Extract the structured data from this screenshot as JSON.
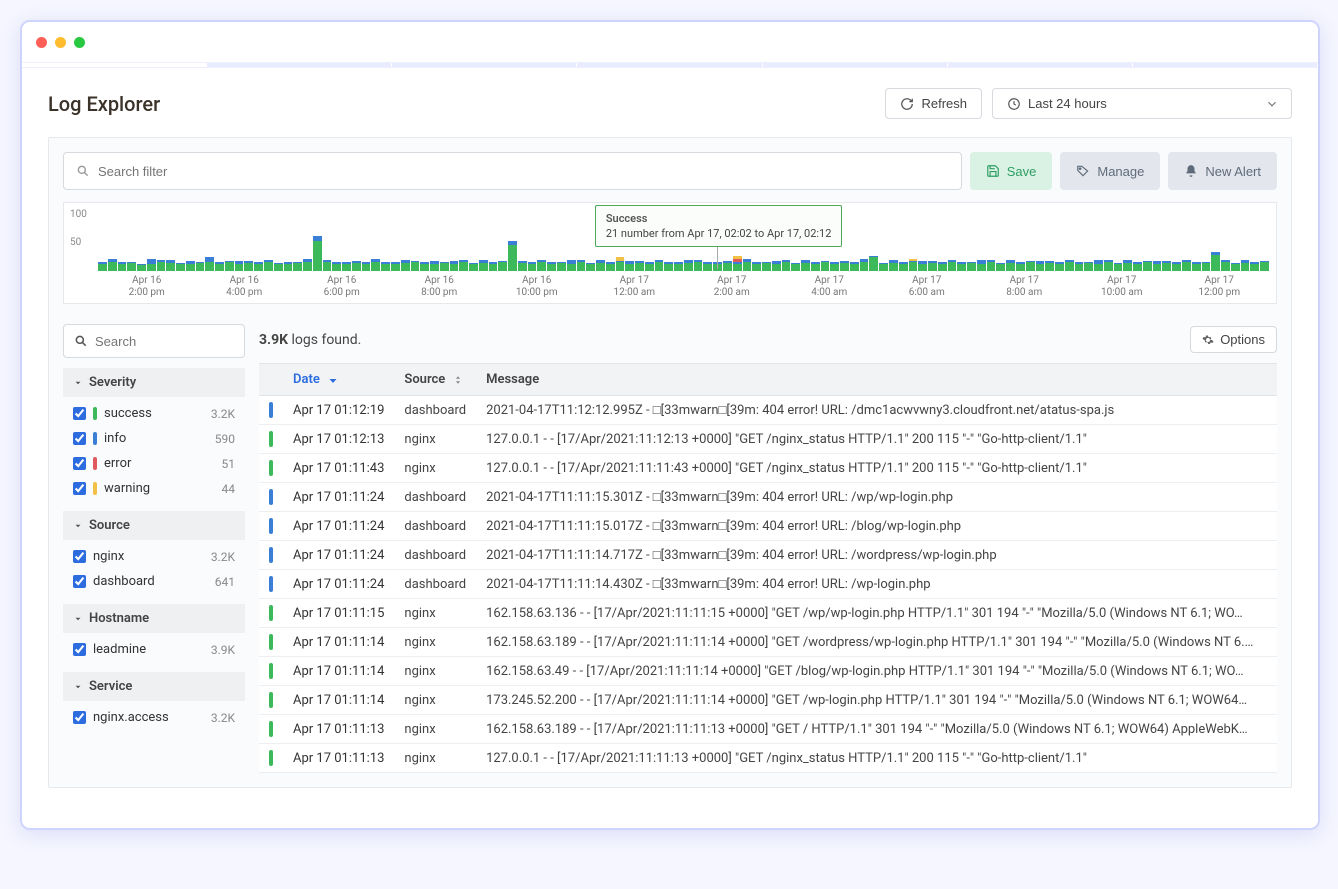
{
  "mac_dots": [
    "#ff5f57",
    "#febc2e",
    "#28c840"
  ],
  "colors": {
    "success": "#3cb95b",
    "info": "#3a7fd5",
    "error": "#e0595b",
    "warning": "#f2c044",
    "accent": "#2d6cdf",
    "save_bg": "#d9f2e3",
    "save_fg": "#2e9e63",
    "muted_bg": "#e3e7ed",
    "muted_fg": "#5f6b7a"
  },
  "header": {
    "title": "Log Explorer",
    "refresh_label": "Refresh",
    "timerange_label": "Last 24 hours"
  },
  "filter_bar": {
    "search_placeholder": "Search filter",
    "save_label": "Save",
    "manage_label": "Manage",
    "alert_label": "New Alert"
  },
  "chart": {
    "ymax": 100,
    "yticks": [
      100,
      50
    ],
    "tooltip": {
      "title": "Success",
      "text": "21 number from Apr 17, 02:02 to Apr 17, 02:12",
      "left_pct": 43.8
    },
    "hover_line": {
      "left_pct": 53.9
    },
    "xticks": [
      {
        "l1": "Apr 16",
        "l2": "2:00 pm"
      },
      {
        "l1": "Apr 16",
        "l2": "4:00 pm"
      },
      {
        "l1": "Apr 16",
        "l2": "6:00 pm"
      },
      {
        "l1": "Apr 16",
        "l2": "8:00 pm"
      },
      {
        "l1": "Apr 16",
        "l2": "10:00 pm"
      },
      {
        "l1": "Apr 17",
        "l2": "12:00 am"
      },
      {
        "l1": "Apr 17",
        "l2": "2:00 am"
      },
      {
        "l1": "Apr 17",
        "l2": "4:00 am"
      },
      {
        "l1": "Apr 17",
        "l2": "6:00 am"
      },
      {
        "l1": "Apr 17",
        "l2": "8:00 am"
      },
      {
        "l1": "Apr 17",
        "l2": "10:00 am"
      },
      {
        "l1": "Apr 17",
        "l2": "12:00 pm"
      }
    ],
    "bars": [
      {
        "s": 12,
        "i": 2
      },
      {
        "s": 14,
        "i": 6
      },
      {
        "s": 11,
        "i": 3
      },
      {
        "s": 13,
        "i": 2
      },
      {
        "s": 10,
        "i": 1
      },
      {
        "s": 12,
        "i": 8
      },
      {
        "s": 14,
        "i": 3
      },
      {
        "s": 13,
        "i": 5
      },
      {
        "s": 11,
        "i": 2
      },
      {
        "s": 12,
        "i": 4
      },
      {
        "s": 13,
        "i": 2
      },
      {
        "s": 15,
        "i": 7
      },
      {
        "s": 12,
        "i": 3
      },
      {
        "s": 14,
        "i": 2
      },
      {
        "s": 11,
        "i": 5
      },
      {
        "s": 13,
        "i": 3
      },
      {
        "s": 12,
        "i": 2
      },
      {
        "s": 14,
        "i": 4
      },
      {
        "s": 11,
        "i": 2
      },
      {
        "s": 12,
        "i": 3
      },
      {
        "s": 13,
        "i": 2
      },
      {
        "s": 14,
        "i": 5
      },
      {
        "s": 48,
        "i": 8
      },
      {
        "s": 15,
        "i": 3
      },
      {
        "s": 12,
        "i": 2
      },
      {
        "s": 11,
        "i": 4
      },
      {
        "s": 13,
        "i": 3
      },
      {
        "s": 12,
        "i": 2
      },
      {
        "s": 14,
        "i": 5
      },
      {
        "s": 11,
        "i": 3
      },
      {
        "s": 12,
        "i": 2
      },
      {
        "s": 13,
        "i": 4
      },
      {
        "s": 14,
        "i": 2
      },
      {
        "s": 12,
        "i": 3
      },
      {
        "s": 11,
        "i": 5
      },
      {
        "s": 13,
        "i": 2
      },
      {
        "s": 12,
        "i": 4
      },
      {
        "s": 14,
        "i": 3
      },
      {
        "s": 11,
        "i": 2
      },
      {
        "s": 13,
        "i": 5
      },
      {
        "s": 12,
        "i": 3
      },
      {
        "s": 14,
        "i": 2
      },
      {
        "s": 42,
        "i": 6
      },
      {
        "s": 13,
        "i": 3
      },
      {
        "s": 12,
        "i": 2
      },
      {
        "s": 14,
        "i": 4
      },
      {
        "s": 11,
        "i": 3
      },
      {
        "s": 13,
        "i": 2
      },
      {
        "s": 12,
        "i": 5
      },
      {
        "s": 14,
        "i": 3
      },
      {
        "s": 11,
        "i": 2
      },
      {
        "s": 13,
        "i": 4
      },
      {
        "s": 12,
        "i": 3
      },
      {
        "s": 14,
        "i": 2,
        "w": 6
      },
      {
        "s": 11,
        "i": 5
      },
      {
        "s": 13,
        "i": 3
      },
      {
        "s": 12,
        "i": 2
      },
      {
        "s": 14,
        "i": 4
      },
      {
        "s": 11,
        "i": 3
      },
      {
        "s": 12,
        "i": 2
      },
      {
        "s": 13,
        "i": 5
      },
      {
        "s": 14,
        "i": 3
      },
      {
        "s": 12,
        "i": 2
      },
      {
        "s": 11,
        "i": 4
      },
      {
        "s": 13,
        "i": 3
      },
      {
        "s": 12,
        "i": 2,
        "e": 6,
        "w": 4
      },
      {
        "s": 14,
        "i": 5
      },
      {
        "s": 11,
        "i": 3
      },
      {
        "s": 13,
        "i": 2
      },
      {
        "s": 12,
        "i": 4
      },
      {
        "s": 14,
        "i": 3
      },
      {
        "s": 11,
        "i": 2
      },
      {
        "s": 13,
        "i": 5
      },
      {
        "s": 12,
        "i": 3
      },
      {
        "s": 14,
        "i": 2
      },
      {
        "s": 11,
        "i": 4
      },
      {
        "s": 13,
        "i": 3
      },
      {
        "s": 12,
        "i": 2
      },
      {
        "s": 14,
        "i": 5
      },
      {
        "s": 22,
        "i": 3
      },
      {
        "s": 11,
        "i": 2
      },
      {
        "s": 13,
        "i": 4
      },
      {
        "s": 12,
        "i": 3
      },
      {
        "s": 14,
        "i": 2,
        "w": 3
      },
      {
        "s": 11,
        "i": 5
      },
      {
        "s": 13,
        "i": 3
      },
      {
        "s": 12,
        "i": 2
      },
      {
        "s": 14,
        "i": 4
      },
      {
        "s": 11,
        "i": 3
      },
      {
        "s": 13,
        "i": 2
      },
      {
        "s": 12,
        "i": 5
      },
      {
        "s": 14,
        "i": 3
      },
      {
        "s": 11,
        "i": 2
      },
      {
        "s": 13,
        "i": 4
      },
      {
        "s": 12,
        "i": 3
      },
      {
        "s": 14,
        "i": 2
      },
      {
        "s": 11,
        "i": 5
      },
      {
        "s": 13,
        "i": 3
      },
      {
        "s": 12,
        "i": 2
      },
      {
        "s": 14,
        "i": 4
      },
      {
        "s": 11,
        "i": 3
      },
      {
        "s": 13,
        "i": 2
      },
      {
        "s": 12,
        "i": 5
      },
      {
        "s": 14,
        "i": 3
      },
      {
        "s": 11,
        "i": 2
      },
      {
        "s": 13,
        "i": 4
      },
      {
        "s": 12,
        "i": 3
      },
      {
        "s": 14,
        "i": 2
      },
      {
        "s": 11,
        "i": 5
      },
      {
        "s": 13,
        "i": 3
      },
      {
        "s": 12,
        "i": 2
      },
      {
        "s": 14,
        "i": 4
      },
      {
        "s": 11,
        "i": 3
      },
      {
        "s": 13,
        "i": 2
      },
      {
        "s": 26,
        "i": 5
      },
      {
        "s": 14,
        "i": 3
      },
      {
        "s": 11,
        "i": 2
      },
      {
        "s": 13,
        "i": 4
      },
      {
        "s": 12,
        "i": 3
      },
      {
        "s": 14,
        "i": 2
      }
    ]
  },
  "side_search_placeholder": "Search",
  "facets": [
    {
      "title": "Severity",
      "items": [
        {
          "label": "success",
          "count": "3.2K",
          "color": "#3cb95b",
          "checked": true
        },
        {
          "label": "info",
          "count": "590",
          "color": "#3a7fd5",
          "checked": true
        },
        {
          "label": "error",
          "count": "51",
          "color": "#e0595b",
          "checked": true
        },
        {
          "label": "warning",
          "count": "44",
          "color": "#f2c044",
          "checked": true
        }
      ]
    },
    {
      "title": "Source",
      "items": [
        {
          "label": "nginx",
          "count": "3.2K",
          "checked": true
        },
        {
          "label": "dashboard",
          "count": "641",
          "checked": true
        }
      ]
    },
    {
      "title": "Hostname",
      "items": [
        {
          "label": "leadmine",
          "count": "3.9K",
          "checked": true
        }
      ]
    },
    {
      "title": "Service",
      "items": [
        {
          "label": "nginx.access",
          "count": "3.2K",
          "checked": true
        }
      ]
    }
  ],
  "logs_found": {
    "count": "3.9K",
    "suffix": " logs found."
  },
  "options_label": "Options",
  "table": {
    "columns": {
      "date": "Date",
      "source": "Source",
      "message": "Message"
    },
    "rows": [
      {
        "sev": "info",
        "date": "Apr 17 01:12:19",
        "source": "dashboard",
        "msg": "2021-04-17T11:12:12.995Z - □[33mwarn□[39m: 404 error! URL: /dmc1acwvwny3.cloudfront.net/atatus-spa.js"
      },
      {
        "sev": "success",
        "date": "Apr 17 01:12:13",
        "source": "nginx",
        "msg": "127.0.0.1 - - [17/Apr/2021:11:12:13 +0000] \"GET /nginx_status HTTP/1.1\" 200 115 \"-\" \"Go-http-client/1.1\""
      },
      {
        "sev": "success",
        "date": "Apr 17 01:11:43",
        "source": "nginx",
        "msg": "127.0.0.1 - - [17/Apr/2021:11:11:43 +0000] \"GET /nginx_status HTTP/1.1\" 200 115 \"-\" \"Go-http-client/1.1\""
      },
      {
        "sev": "info",
        "date": "Apr 17 01:11:24",
        "source": "dashboard",
        "msg": "2021-04-17T11:11:15.301Z - □[33mwarn□[39m: 404 error! URL: /wp/wp-login.php"
      },
      {
        "sev": "info",
        "date": "Apr 17 01:11:24",
        "source": "dashboard",
        "msg": "2021-04-17T11:11:15.017Z - □[33mwarn□[39m: 404 error! URL: /blog/wp-login.php"
      },
      {
        "sev": "info",
        "date": "Apr 17 01:11:24",
        "source": "dashboard",
        "msg": "2021-04-17T11:11:14.717Z - □[33mwarn□[39m: 404 error! URL: /wordpress/wp-login.php"
      },
      {
        "sev": "info",
        "date": "Apr 17 01:11:24",
        "source": "dashboard",
        "msg": "2021-04-17T11:11:14.430Z - □[33mwarn□[39m: 404 error! URL: /wp-login.php"
      },
      {
        "sev": "success",
        "date": "Apr 17 01:11:15",
        "source": "nginx",
        "msg": "162.158.63.136 - - [17/Apr/2021:11:11:15 +0000] \"GET /wp/wp-login.php HTTP/1.1\" 301 194 \"-\" \"Mozilla/5.0 (Windows NT 6.1; WO…"
      },
      {
        "sev": "success",
        "date": "Apr 17 01:11:14",
        "source": "nginx",
        "msg": "162.158.63.189 - - [17/Apr/2021:11:11:14 +0000] \"GET /wordpress/wp-login.php HTTP/1.1\" 301 194 \"-\" \"Mozilla/5.0 (Windows NT 6.…"
      },
      {
        "sev": "success",
        "date": "Apr 17 01:11:14",
        "source": "nginx",
        "msg": "162.158.63.49 - - [17/Apr/2021:11:11:14 +0000] \"GET /blog/wp-login.php HTTP/1.1\" 301 194 \"-\" \"Mozilla/5.0 (Windows NT 6.1; WO…"
      },
      {
        "sev": "success",
        "date": "Apr 17 01:11:14",
        "source": "nginx",
        "msg": "173.245.52.200 - - [17/Apr/2021:11:11:14 +0000] \"GET /wp-login.php HTTP/1.1\" 301 194 \"-\" \"Mozilla/5.0 (Windows NT 6.1; WOW64…"
      },
      {
        "sev": "success",
        "date": "Apr 17 01:11:13",
        "source": "nginx",
        "msg": "162.158.63.189 - - [17/Apr/2021:11:11:13 +0000] \"GET / HTTP/1.1\" 301 194 \"-\" \"Mozilla/5.0 (Windows NT 6.1; WOW64) AppleWebK…"
      },
      {
        "sev": "success",
        "date": "Apr 17 01:11:13",
        "source": "nginx",
        "msg": "127.0.0.1 - - [17/Apr/2021:11:11:13 +0000] \"GET /nginx_status HTTP/1.1\" 200 115 \"-\" \"Go-http-client/1.1\""
      }
    ]
  }
}
